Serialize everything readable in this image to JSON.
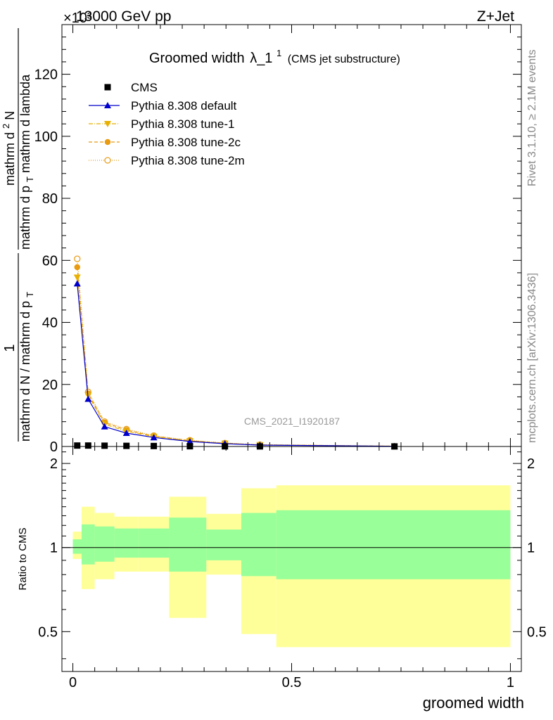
{
  "header": {
    "left": "13000 GeV pp",
    "right": "Z+Jet",
    "exponent": "×10³"
  },
  "side_labels": {
    "rivet": "Rivet 3.1.10, ≥ 2.1M events",
    "mcplots": "mcplots.cern.ch [arXiv:1306.3436]"
  },
  "watermark": "CMS_2021_I1920187",
  "chart_data": [
    {
      "type": "line",
      "title_main": "Groomed width",
      "title_lambda": "λ_1",
      "title_sup": "1",
      "title_paren": "(CMS jet substructure)",
      "ylabel_num_1": "1",
      "ylabel_den": "mathrm d N / mathrm d p",
      "ylabel_den_sub": "T",
      "ylabel_num_2": "mathrm d",
      "ylabel_num_2_sup": "2",
      "ylabel_num_2_rest": "N",
      "ylabel_den_2": "mathrm d p",
      "ylabel_den_2_sub": "T",
      "ylabel_den_2_rest": " mathrm d lambda",
      "ylim": [
        0,
        136
      ],
      "xlim": [
        -0.025,
        1.025
      ],
      "yticks": [
        0,
        20,
        40,
        60,
        80,
        100,
        120
      ],
      "ytick_labels": [
        "0",
        "20",
        "40",
        "60",
        "80",
        "100",
        "120"
      ],
      "legend_position": "top-left",
      "x": [
        0.01,
        0.035,
        0.0725,
        0.1225,
        0.185,
        0.2675,
        0.3475,
        0.4275,
        0.735
      ],
      "series": [
        {
          "name": "CMS",
          "color": "#000000",
          "marker": "square",
          "dash": "none",
          "values": [
            0.3,
            0.3,
            0.25,
            0.2,
            0.15,
            0.08,
            0.05,
            0.03,
            0.02
          ],
          "plot_line": false
        },
        {
          "name": "Pythia 8.308 default",
          "color": "#0000cc",
          "marker": "triangle-up",
          "dash": "none",
          "values": [
            52.5,
            15.3,
            6.4,
            4.3,
            2.9,
            1.6,
            0.9,
            0.45,
            0.07
          ],
          "plot_line": true
        },
        {
          "name": "Pythia 8.308 tune-1",
          "color": "#e8b000",
          "marker": "triangle-down",
          "dash": "6,2,1,2",
          "values": [
            54.5,
            16.5,
            7.2,
            4.9,
            3.2,
            1.8,
            1.0,
            0.5,
            0.08
          ],
          "plot_line": true
        },
        {
          "name": "Pythia 8.308 tune-2c",
          "color": "#e89a10",
          "marker": "circle",
          "dash": "5,3",
          "values": [
            57.8,
            17.1,
            7.7,
            5.3,
            3.3,
            1.9,
            1.05,
            0.55,
            0.08
          ],
          "plot_line": true
        },
        {
          "name": "Pythia 8.308 tune-2m",
          "color": "#e8a020",
          "marker": "circle-open",
          "dash": "1,2",
          "values": [
            60.5,
            17.6,
            8.0,
            5.6,
            3.5,
            2.0,
            1.1,
            0.6,
            0.09
          ],
          "plot_line": true
        }
      ]
    },
    {
      "type": "area",
      "ylabel": "Ratio to CMS",
      "xlabel": "groomed width",
      "xlim": [
        -0.025,
        1.025
      ],
      "ylim": [
        0.36,
        2.3
      ],
      "ylog": true,
      "yticks": [
        0.5,
        1,
        2
      ],
      "ytick_labels": [
        "0.5",
        "1",
        "2"
      ],
      "xticks": [
        0,
        0.5,
        1
      ],
      "xtick_labels": [
        "0",
        "0.5",
        "1"
      ],
      "reference_line": 1,
      "band_inner_color": "#99ff99",
      "band_outer_color": "#ffff99",
      "bins": [
        {
          "x0": 0.0,
          "x1": 0.02,
          "inner": [
            0.95,
            1.07
          ],
          "outer": [
            0.91,
            1.14
          ]
        },
        {
          "x0": 0.02,
          "x1": 0.05,
          "inner": [
            0.87,
            1.21
          ],
          "outer": [
            0.71,
            1.4
          ]
        },
        {
          "x0": 0.05,
          "x1": 0.095,
          "inner": [
            0.89,
            1.19
          ],
          "outer": [
            0.77,
            1.33
          ]
        },
        {
          "x0": 0.095,
          "x1": 0.15,
          "inner": [
            0.92,
            1.17
          ],
          "outer": [
            0.82,
            1.29
          ]
        },
        {
          "x0": 0.15,
          "x1": 0.22,
          "inner": [
            0.92,
            1.17
          ],
          "outer": [
            0.82,
            1.29
          ]
        },
        {
          "x0": 0.22,
          "x1": 0.305,
          "inner": [
            0.82,
            1.28
          ],
          "outer": [
            0.56,
            1.52
          ]
        },
        {
          "x0": 0.305,
          "x1": 0.385,
          "inner": [
            0.9,
            1.16
          ],
          "outer": [
            0.8,
            1.32
          ]
        },
        {
          "x0": 0.385,
          "x1": 0.465,
          "inner": [
            0.79,
            1.33
          ],
          "outer": [
            0.49,
            1.63
          ]
        },
        {
          "x0": 0.465,
          "x1": 1.0,
          "inner": [
            0.77,
            1.36
          ],
          "outer": [
            0.44,
            1.67
          ]
        }
      ]
    }
  ]
}
